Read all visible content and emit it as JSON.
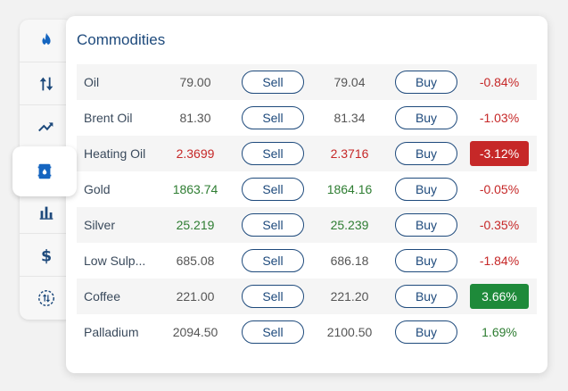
{
  "panel": {
    "title": "Commodities"
  },
  "sidebar": {
    "tabs": [
      {
        "icon": "flame-icon",
        "label_id": "energy"
      },
      {
        "icon": "sort-arrows-icon",
        "label_id": "movers"
      },
      {
        "icon": "trend-up-icon",
        "label_id": "trending"
      },
      {
        "icon": "oil-barrel-icon",
        "label_id": "commodities"
      },
      {
        "icon": "bar-chart-icon",
        "label_id": "indices"
      },
      {
        "icon": "dollar-icon",
        "label_id": "forex"
      },
      {
        "icon": "exchange-icon",
        "label_id": "rates"
      }
    ],
    "active_index": 3,
    "accent": "#1565c0"
  },
  "buttons": {
    "sell": "Sell",
    "buy": "Buy"
  },
  "colors": {
    "up": "#2e7d32",
    "down": "#c62828",
    "badge_up": "#1e8a3a",
    "badge_down": "#c62828",
    "brand": "#1e4a7c"
  },
  "rows": [
    {
      "name": "Oil",
      "bid": "79.00",
      "ask": "79.04",
      "change": "-0.84%",
      "price_dir": "neutral",
      "chg_dir": "down",
      "highlight": false
    },
    {
      "name": "Brent Oil",
      "bid": "81.30",
      "ask": "81.34",
      "change": "-1.03%",
      "price_dir": "neutral",
      "chg_dir": "down",
      "highlight": false
    },
    {
      "name": "Heating Oil",
      "bid": "2.3699",
      "ask": "2.3716",
      "change": "-3.12%",
      "price_dir": "down",
      "chg_dir": "down",
      "highlight": true
    },
    {
      "name": "Gold",
      "bid": "1863.74",
      "ask": "1864.16",
      "change": "-0.05%",
      "price_dir": "up",
      "chg_dir": "down",
      "highlight": false
    },
    {
      "name": "Silver",
      "bid": "25.219",
      "ask": "25.239",
      "change": "-0.35%",
      "price_dir": "up",
      "chg_dir": "down",
      "highlight": false
    },
    {
      "name": "Low Sulp...",
      "bid": "685.08",
      "ask": "686.18",
      "change": "-1.84%",
      "price_dir": "neutral",
      "chg_dir": "down",
      "highlight": false
    },
    {
      "name": "Coffee",
      "bid": "221.00",
      "ask": "221.20",
      "change": "3.66%",
      "price_dir": "neutral",
      "chg_dir": "up",
      "highlight": true
    },
    {
      "name": "Palladium",
      "bid": "2094.50",
      "ask": "2100.50",
      "change": "1.69%",
      "price_dir": "neutral",
      "chg_dir": "up",
      "highlight": false
    }
  ]
}
